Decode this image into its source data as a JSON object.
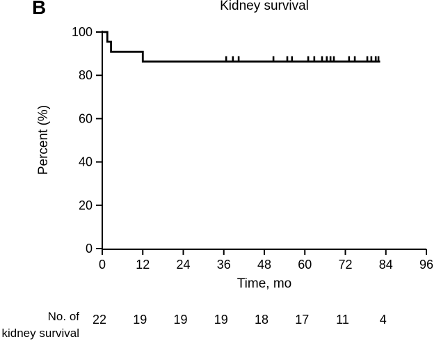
{
  "figure": {
    "panel_label": "B",
    "title": "Kidney survival",
    "x_axis": {
      "label": "Time, mo",
      "min": 0,
      "max": 96
    },
    "y_axis": {
      "label": "Percent (%)",
      "min": 0,
      "max": 100
    }
  },
  "chart_data": {
    "type": "line",
    "subtype": "kaplan-meier-step",
    "title": "Kidney survival",
    "xlabel": "Time, mo",
    "ylabel": "Percent (%)",
    "xlim": [
      0,
      96
    ],
    "ylim": [
      0,
      100
    ],
    "x_ticks": [
      0,
      12,
      24,
      36,
      48,
      60,
      72,
      84,
      96
    ],
    "y_ticks": [
      0,
      20,
      40,
      60,
      80,
      100
    ],
    "grid": false,
    "legend": false,
    "line_color": "#000000",
    "background": "#ffffff",
    "series": [
      {
        "name": "Kidney survival",
        "step_points": [
          [
            0,
            100
          ],
          [
            1.5,
            100
          ],
          [
            1.5,
            95.5
          ],
          [
            2.6,
            95.5
          ],
          [
            2.6,
            90.9
          ],
          [
            12,
            90.9
          ],
          [
            12,
            86.4
          ],
          [
            82.3,
            86.4
          ]
        ],
        "censor_y": 86.4,
        "censor_marks_x": [
          36.7,
          38.7,
          40.4,
          50.7,
          54.8,
          56.2,
          61.0,
          62.8,
          65.1,
          66.5,
          67.6,
          68.6,
          73.1,
          74.8,
          78.5,
          79.7,
          81.0,
          81.8
        ]
      }
    ]
  },
  "risk_table": {
    "label_line1": "No. of",
    "label_line2": "kidney survival",
    "times": [
      0,
      12,
      24,
      36,
      48,
      60,
      72,
      84
    ],
    "counts": [
      22,
      19,
      19,
      19,
      18,
      17,
      11,
      4
    ]
  }
}
